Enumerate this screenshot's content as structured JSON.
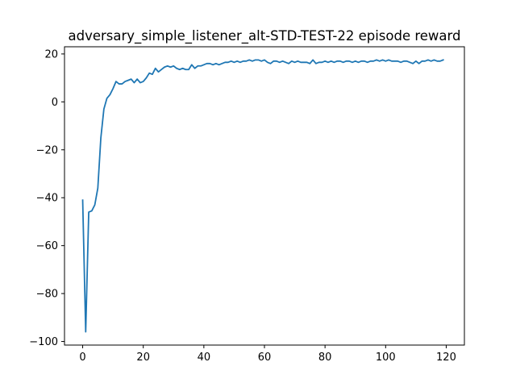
{
  "chart_data": {
    "type": "line",
    "title": "adversary_simple_listener_alt-STD-TEST-22 episode reward",
    "xlabel": "",
    "ylabel": "",
    "xlim": [
      -6,
      126
    ],
    "ylim": [
      -101.5,
      23
    ],
    "x_ticks": [
      0,
      20,
      40,
      60,
      80,
      100,
      120
    ],
    "y_ticks": [
      -100,
      -80,
      -60,
      -40,
      -20,
      0,
      20
    ],
    "x_tick_labels": [
      "0",
      "20",
      "40",
      "60",
      "80",
      "100",
      "120"
    ],
    "y_tick_labels": [
      "−100",
      "−80",
      "−60",
      "−40",
      "−20",
      "0",
      "20"
    ],
    "grid": false,
    "line_color": "#1f77b4",
    "series": [
      {
        "x": [
          0,
          1,
          2,
          3,
          4,
          5,
          6,
          7,
          8,
          9,
          10,
          11,
          12,
          13,
          14,
          15,
          16,
          17,
          18,
          19,
          20,
          21,
          22,
          23,
          24,
          25,
          26,
          27,
          28,
          29,
          30,
          31,
          32,
          33,
          34,
          35,
          36,
          37,
          38,
          39,
          40,
          41,
          42,
          43,
          44,
          45,
          46,
          47,
          48,
          49,
          50,
          51,
          52,
          53,
          54,
          55,
          56,
          57,
          58,
          59,
          60,
          61,
          62,
          63,
          64,
          65,
          66,
          67,
          68,
          69,
          70,
          71,
          72,
          73,
          74,
          75,
          76,
          77,
          78,
          79,
          80,
          81,
          82,
          83,
          84,
          85,
          86,
          87,
          88,
          89,
          90,
          91,
          92,
          93,
          94,
          95,
          96,
          97,
          98,
          99,
          100,
          101,
          102,
          103,
          104,
          105,
          106,
          107,
          108,
          109,
          110,
          111,
          112,
          113,
          114,
          115,
          116,
          117,
          118,
          119
        ],
        "values": [
          -41,
          -96,
          -46,
          -45.5,
          -43,
          -36,
          -15,
          -3,
          1.5,
          3,
          5.5,
          8.5,
          7.5,
          7.5,
          8.5,
          9,
          9.5,
          8,
          9.5,
          8,
          8.5,
          10,
          12,
          11.5,
          14,
          12.5,
          13.5,
          14.5,
          15,
          14.5,
          15,
          14,
          13.5,
          14,
          13.5,
          13.5,
          15.5,
          14,
          15,
          15,
          15.5,
          16,
          16,
          15.5,
          16,
          15.5,
          16,
          16.5,
          16.5,
          17,
          16.5,
          17,
          16.5,
          17,
          17,
          17.5,
          17,
          17.5,
          17.5,
          17,
          17.5,
          16.5,
          16,
          17,
          17,
          16.5,
          17,
          16.5,
          16,
          17,
          16.5,
          17,
          16.5,
          16.5,
          16.5,
          16,
          17.5,
          16,
          16.5,
          16.5,
          17,
          16.5,
          17,
          16.5,
          17,
          17,
          16.5,
          17,
          17,
          16.5,
          17,
          16.5,
          17,
          17,
          16.5,
          17,
          17,
          17.5,
          17,
          17.5,
          17,
          17.5,
          17,
          17,
          17,
          16.5,
          17,
          17,
          16.5,
          16,
          17,
          16,
          17,
          17,
          17.5,
          17,
          17.5,
          17,
          17,
          17.5
        ]
      }
    ]
  }
}
